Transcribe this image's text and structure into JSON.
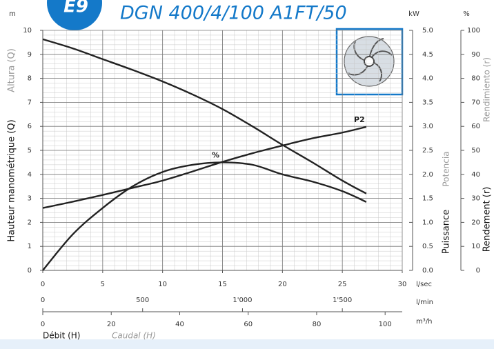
{
  "badge": "E9",
  "chart_data": {
    "type": "line",
    "title": "DGN 400/4/100 A1FT/50",
    "x": [
      0,
      2.5,
      5,
      7.5,
      10,
      12.5,
      15,
      17.5,
      20,
      22.5,
      25,
      27
    ],
    "series": [
      {
        "name": null,
        "color": "#222222",
        "axis": "y",
        "values": [
          9.63,
          9.25,
          8.8,
          8.35,
          7.87,
          7.33,
          6.72,
          6.0,
          5.23,
          4.5,
          3.74,
          3.2
        ]
      },
      {
        "name": "P2",
        "color": "#222222",
        "axis": "y2",
        "values": [
          1.3,
          1.43,
          1.57,
          1.72,
          1.87,
          2.06,
          2.26,
          2.44,
          2.6,
          2.75,
          2.87,
          2.99
        ]
      },
      {
        "name": "%",
        "color": "#222222",
        "axis": "y3",
        "values": [
          0,
          15,
          26,
          35,
          41,
          44,
          45,
          44,
          40,
          37,
          33,
          28.5
        ]
      }
    ],
    "xlim": [
      0,
      30
    ],
    "xticks": [
      0,
      5,
      10,
      15,
      20,
      25,
      30
    ],
    "x_unit": "l/sec",
    "x2lim": [
      0,
      1800
    ],
    "x2ticks": [
      0,
      500,
      {
        "value": 1000,
        "label": "1'000"
      },
      {
        "value": 1500,
        "label": "1'500"
      }
    ],
    "x2_unit": "l/min",
    "x3lim": [
      0,
      105
    ],
    "x3ticks": [
      0,
      20,
      40,
      60,
      80,
      100
    ],
    "x3_unit": "m³/h",
    "ylim": [
      0,
      10
    ],
    "yticks": [
      0,
      1,
      2,
      3,
      4,
      5,
      6,
      7,
      8,
      9,
      10
    ],
    "y_unit": "m",
    "y2lim": [
      0,
      5
    ],
    "y2ticks": [
      {
        "value": 0,
        "label": "0.0"
      },
      0.5,
      {
        "value": 1,
        "label": "1.0"
      },
      1.5,
      {
        "value": 2,
        "label": "2.0"
      },
      2.5,
      {
        "value": 3,
        "label": "3.0"
      },
      3.5,
      {
        "value": 4,
        "label": "4.0"
      },
      4.5,
      {
        "value": 5,
        "label": "5.0"
      }
    ],
    "y2_unit": "kW",
    "y3lim": [
      0,
      100
    ],
    "y3ticks": [
      0,
      10,
      20,
      30,
      40,
      50,
      60,
      70,
      80,
      90,
      100
    ],
    "y3_unit": "%",
    "ylabel": "Hauteur manométrique (Q)",
    "ylabel_alt": "Altura (Q)",
    "y2label": "Puissance",
    "y2label_alt": "Potencia",
    "y3label": "Rendement (r)",
    "y3label_alt": "Rendimiento (r)",
    "xlabel": "Débit (H)",
    "xlabel_alt": "Caudal (H)",
    "grid": true,
    "minor_grid": true
  }
}
